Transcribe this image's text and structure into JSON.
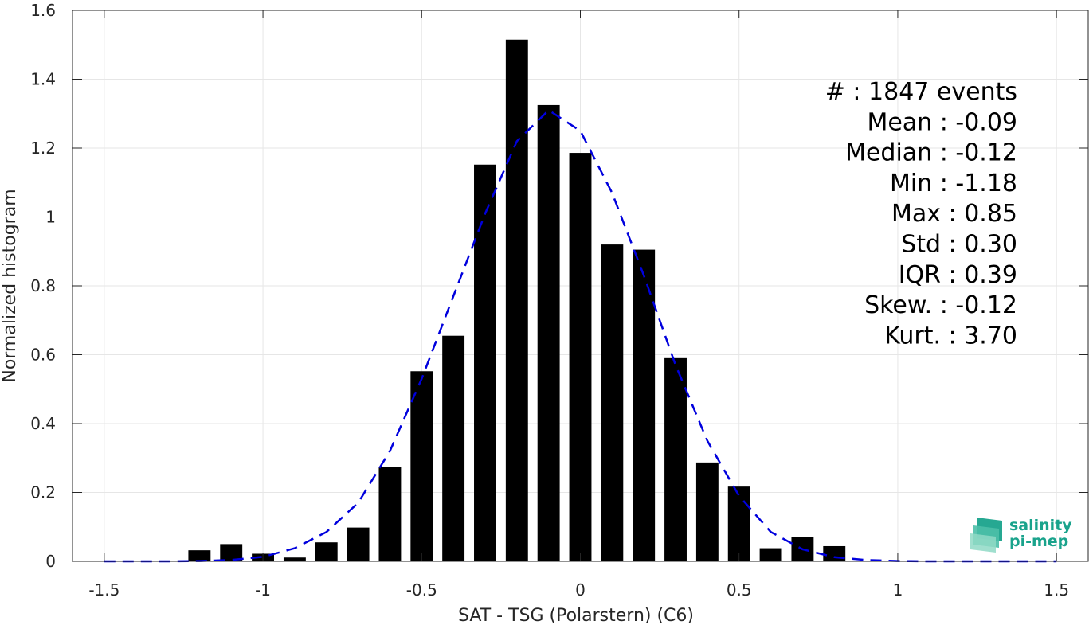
{
  "chart_data": {
    "type": "bar",
    "xlabel": "SAT - TSG (Polarstern) (C6)",
    "ylabel": "Normalized histogram",
    "xlim": [
      -1.6,
      1.6
    ],
    "ylim": [
      0,
      1.6
    ],
    "grid": true,
    "x_ticks": [
      -1.5,
      -1,
      -0.5,
      0,
      0.5,
      1,
      1.5
    ],
    "x_tick_labels": [
      "-1.5",
      "-1",
      "-0.5",
      "0",
      "0.5",
      "1",
      "1.5"
    ],
    "y_ticks": [
      0,
      0.2,
      0.4,
      0.6,
      0.8,
      1,
      1.2,
      1.4,
      1.6
    ],
    "y_tick_labels": [
      "0",
      "0.2",
      "0.4",
      "0.6",
      "0.8",
      "1",
      "1.2",
      "1.4",
      "1.6"
    ],
    "bar_color": "#000000",
    "bar_width": 0.07,
    "bars": [
      {
        "x": -1.2,
        "y": 0.032
      },
      {
        "x": -1.1,
        "y": 0.05
      },
      {
        "x": -1.0,
        "y": 0.022
      },
      {
        "x": -0.9,
        "y": 0.011
      },
      {
        "x": -0.8,
        "y": 0.055
      },
      {
        "x": -0.7,
        "y": 0.098
      },
      {
        "x": -0.6,
        "y": 0.275
      },
      {
        "x": -0.5,
        "y": 0.552
      },
      {
        "x": -0.4,
        "y": 0.655
      },
      {
        "x": -0.3,
        "y": 1.152
      },
      {
        "x": -0.2,
        "y": 1.515
      },
      {
        "x": -0.1,
        "y": 1.325
      },
      {
        "x": 0.0,
        "y": 1.186
      },
      {
        "x": 0.1,
        "y": 0.92
      },
      {
        "x": 0.2,
        "y": 0.905
      },
      {
        "x": 0.3,
        "y": 0.59
      },
      {
        "x": 0.4,
        "y": 0.287
      },
      {
        "x": 0.5,
        "y": 0.217
      },
      {
        "x": 0.6,
        "y": 0.038
      },
      {
        "x": 0.7,
        "y": 0.071
      },
      {
        "x": 0.8,
        "y": 0.044
      }
    ],
    "fit_curve": {
      "color": "#0000dd",
      "style": "dashed",
      "x": [
        -1.5,
        -1.4,
        -1.3,
        -1.2,
        -1.1,
        -1.0,
        -0.9,
        -0.8,
        -0.7,
        -0.6,
        -0.5,
        -0.4,
        -0.3,
        -0.2,
        -0.1,
        0.0,
        0.1,
        0.2,
        0.3,
        0.4,
        0.5,
        0.6,
        0.7,
        0.8,
        0.9,
        1.0,
        1.1,
        1.2,
        1.3,
        1.4,
        1.5
      ],
      "y": [
        0.0,
        0.0,
        0.0,
        0.001,
        0.004,
        0.013,
        0.038,
        0.085,
        0.17,
        0.32,
        0.53,
        0.77,
        1.01,
        1.22,
        1.31,
        1.25,
        1.07,
        0.83,
        0.57,
        0.35,
        0.19,
        0.085,
        0.035,
        0.012,
        0.004,
        0.001,
        0.0,
        0.0,
        0.0,
        0.0,
        0.0
      ]
    },
    "stats": [
      {
        "label": "#  : 1847 events"
      },
      {
        "label": "Mean : -0.09"
      },
      {
        "label": "Median : -0.12"
      },
      {
        "label": "Min : -1.18"
      },
      {
        "label": "Max : 0.85"
      },
      {
        "label": "Std : 0.30"
      },
      {
        "label": "IQR : 0.39"
      },
      {
        "label": "Skew. : -0.12"
      },
      {
        "label": "Kurt. : 3.70"
      }
    ]
  },
  "logo": {
    "line1": "salinity",
    "line2": "pi-mep",
    "color": "#1aa38c"
  }
}
